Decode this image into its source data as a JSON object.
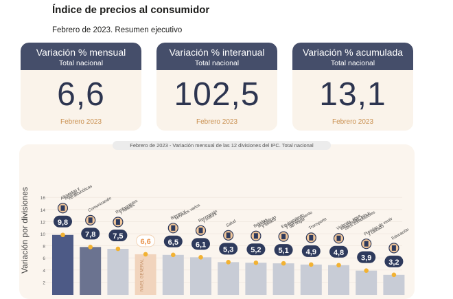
{
  "header": {
    "title": "Índice de precios al consumidor",
    "subtitle": "Febrero de 2023. Resumen ejecutivo"
  },
  "cards": [
    {
      "title": "Variación % mensual",
      "sub": "Total nacional",
      "value": "6,6",
      "foot": "Febrero 2023"
    },
    {
      "title": "Variación % interanual",
      "sub": "Total nacional",
      "value": "102,5",
      "foot": "Febrero 2023"
    },
    {
      "title": "Variación % acumulada",
      "sub": "Total nacional",
      "value": "13,1",
      "foot": "Febrero 2023"
    }
  ],
  "colors": {
    "card_head": "#454e6a",
    "bar_lead": "#4d5a86",
    "bar_second": "#6b7390",
    "bar_default": "#c8ccd6",
    "bar_general": "#f1d4bd",
    "dot": "#f2b233",
    "bubble": "#2e3a5c"
  },
  "chart_caption": "Febrero de 2023 - Variación mensual de las 12 divisiones del IPC. Total nacional",
  "chart_data": {
    "type": "bar",
    "title": "Febrero de 2023 - Variación mensual de las 12 divisiones del IPC. Total nacional",
    "ylabel": "Variación por divisiones",
    "ylim": [
      0,
      16
    ],
    "yticks": [
      2,
      4,
      6,
      8,
      10,
      12,
      14,
      16
    ],
    "categories": [
      "Alimentos y bebidas no alcohólicas",
      "Comunicación",
      "Restaurantes y hoteles",
      "NIVEL GENERAL",
      "Bienes y servicios varios",
      "Recreación y cultura",
      "Salud",
      "Bebidas alcohólicas y tabaco",
      "Equipamiento y mantenimiento del hogar",
      "Transporte",
      "Vivienda, agua, electricidad, gas y otros combustibles",
      "Prendas de vestir y calzado",
      "Educación"
    ],
    "values": [
      9.8,
      7.8,
      7.5,
      6.6,
      6.5,
      6.1,
      5.3,
      5.2,
      5.1,
      4.9,
      4.8,
      3.9,
      3.2
    ],
    "value_labels": [
      "9,8",
      "7,8",
      "7,5",
      "6,6",
      "6,5",
      "6,1",
      "5,3",
      "5,2",
      "5,1",
      "4,9",
      "4,8",
      "3,9",
      "3,2"
    ],
    "label_lines": [
      [
        "Alimentos y",
        "bebidas",
        "no alcohólicas"
      ],
      [
        "Comunicación"
      ],
      [
        "Restaurantes",
        "y hoteles"
      ],
      [
        "NIVEL",
        "GENERAL"
      ],
      [
        "Bienes y",
        "servicios varios"
      ],
      [
        "Recreación",
        "y cultura"
      ],
      [
        "Salud"
      ],
      [
        "Bebidas",
        "alcohólicas",
        "y tabaco"
      ],
      [
        "Equipamiento",
        "y mantenimiento",
        "del hogar"
      ],
      [
        "Transporte"
      ],
      [
        "Vivienda, agua,",
        "electricidad, gas y",
        "otros combustibles"
      ],
      [
        "Prendas de vestir",
        "y calzado"
      ],
      [
        "Educación"
      ]
    ],
    "icons": [
      "grocery-icon",
      "phone-icon",
      "dining-icon",
      "",
      "scissors-comb-icon",
      "paint-icon",
      "first-aid-icon",
      "wine-icon",
      "appliance-icon",
      "car-icon",
      "plug-icon",
      "clothing-icon",
      "book-icon"
    ]
  }
}
